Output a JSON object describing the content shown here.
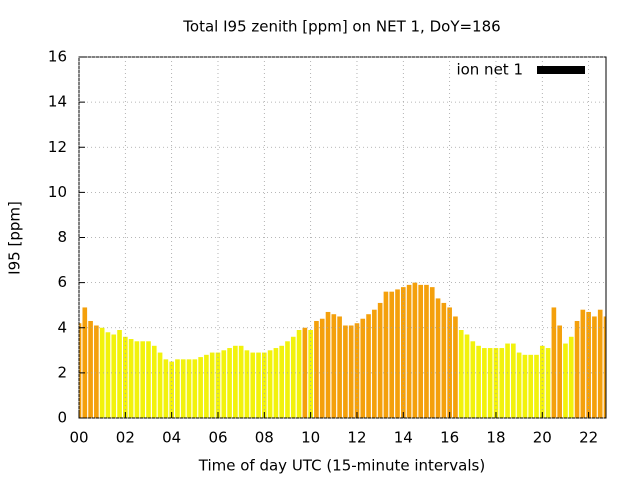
{
  "chart_data": {
    "type": "bar",
    "title": "Total I95 zenith [ppm] on NET 1, DoY=186",
    "x_label": "Time of day UTC (15-minute intervals)",
    "y_label": "I95 [ppm]",
    "x": [
      0,
      0.25,
      0.5,
      0.75,
      1,
      1.25,
      1.5,
      1.75,
      2,
      2.25,
      2.5,
      2.75,
      3,
      3.25,
      3.5,
      3.75,
      4,
      4.25,
      4.5,
      4.75,
      5,
      5.25,
      5.5,
      5.75,
      6,
      6.25,
      6.5,
      6.75,
      7,
      7.25,
      7.5,
      7.75,
      8,
      8.25,
      8.5,
      8.75,
      9,
      9.25,
      9.5,
      9.75,
      10,
      10.25,
      10.5,
      10.75,
      11,
      11.25,
      11.5,
      11.75,
      12,
      12.25,
      12.5,
      12.75,
      13,
      13.25,
      13.5,
      13.75,
      14,
      14.25,
      14.5,
      14.75,
      15,
      15.25,
      15.5,
      15.75,
      16,
      16.25,
      16.5,
      16.75,
      17,
      17.25,
      17.5,
      17.75,
      18,
      18.25,
      18.5,
      18.75,
      19,
      19.25,
      19.5,
      19.75,
      20,
      20.25,
      20.5,
      20.75,
      21,
      21.25,
      21.5,
      21.75,
      22,
      22.25,
      22.5,
      22.75
    ],
    "series": [
      {
        "name": "ion net 1",
        "color": "#000000",
        "values": [
          4.2,
          4.9,
          4.3,
          4.1,
          4.0,
          3.8,
          3.7,
          3.9,
          3.6,
          3.5,
          3.4,
          3.4,
          3.4,
          3.2,
          2.9,
          2.6,
          2.5,
          2.6,
          2.6,
          2.6,
          2.6,
          2.7,
          2.8,
          2.9,
          2.9,
          3.0,
          3.1,
          3.2,
          3.2,
          3.0,
          2.9,
          2.9,
          2.9,
          3.0,
          3.1,
          3.2,
          3.4,
          3.6,
          3.9,
          4.0,
          3.9,
          4.3,
          4.4,
          4.7,
          4.6,
          4.5,
          4.1,
          4.1,
          4.2,
          4.4,
          4.6,
          4.8,
          5.1,
          5.6,
          5.6,
          5.7,
          5.8,
          5.9,
          6.0,
          5.9,
          5.9,
          5.8,
          5.3,
          5.1,
          4.9,
          4.5,
          3.9,
          3.7,
          3.4,
          3.2,
          3.1,
          3.1,
          3.1,
          3.1,
          3.3,
          3.3,
          2.9,
          2.8,
          2.8,
          2.8,
          3.2,
          3.1,
          4.9,
          4.1,
          3.3,
          3.6,
          4.3,
          4.8,
          4.7,
          4.5,
          4.8,
          4.5
        ],
        "bar_colors": [
          "#f4a00c",
          "#f4a00c",
          "#f4a00c",
          "#f4a00c",
          "#f2f20c",
          "#f2f20c",
          "#f2f20c",
          "#f2f20c",
          "#f2f20c",
          "#f2f20c",
          "#f2f20c",
          "#f2f20c",
          "#f2f20c",
          "#f2f20c",
          "#f2f20c",
          "#f2f20c",
          "#f2f20c",
          "#f2f20c",
          "#f2f20c",
          "#f2f20c",
          "#f2f20c",
          "#f2f20c",
          "#f2f20c",
          "#f2f20c",
          "#f2f20c",
          "#f2f20c",
          "#f2f20c",
          "#f2f20c",
          "#f2f20c",
          "#f2f20c",
          "#f2f20c",
          "#f2f20c",
          "#f2f20c",
          "#f2f20c",
          "#f2f20c",
          "#f2f20c",
          "#f2f20c",
          "#f2f20c",
          "#f2f20c",
          "#f4a00c",
          "#f2f20c",
          "#f4a00c",
          "#f4a00c",
          "#f4a00c",
          "#f4a00c",
          "#f4a00c",
          "#f4a00c",
          "#f4a00c",
          "#f4a00c",
          "#f4a00c",
          "#f4a00c",
          "#f4a00c",
          "#f4a00c",
          "#f4a00c",
          "#f4a00c",
          "#f4a00c",
          "#f4a00c",
          "#f4a00c",
          "#f4a00c",
          "#f4a00c",
          "#f4a00c",
          "#f4a00c",
          "#f4a00c",
          "#f4a00c",
          "#f4a00c",
          "#f4a00c",
          "#f2f20c",
          "#f2f20c",
          "#f2f20c",
          "#f2f20c",
          "#f2f20c",
          "#f2f20c",
          "#f2f20c",
          "#f2f20c",
          "#f2f20c",
          "#f2f20c",
          "#f2f20c",
          "#f2f20c",
          "#f2f20c",
          "#f2f20c",
          "#f2f20c",
          "#f2f20c",
          "#f4a00c",
          "#f4a00c",
          "#f2f20c",
          "#f2f20c",
          "#f4a00c",
          "#f4a00c",
          "#f4a00c",
          "#f4a00c",
          "#f4a00c",
          "#f4a00c"
        ]
      }
    ],
    "xlim": [
      0,
      22.75
    ],
    "xticks": [
      {
        "value": 0,
        "label": "00"
      },
      {
        "value": 2,
        "label": "02"
      },
      {
        "value": 4,
        "label": "04"
      },
      {
        "value": 6,
        "label": "06"
      },
      {
        "value": 8,
        "label": "08"
      },
      10,
      12,
      14,
      16,
      18,
      20,
      22
    ],
    "ylim": [
      0,
      16
    ],
    "yticks": [
      0,
      2,
      4,
      6,
      8,
      10,
      12,
      14,
      16
    ],
    "grid": true,
    "legend": "top-right"
  }
}
